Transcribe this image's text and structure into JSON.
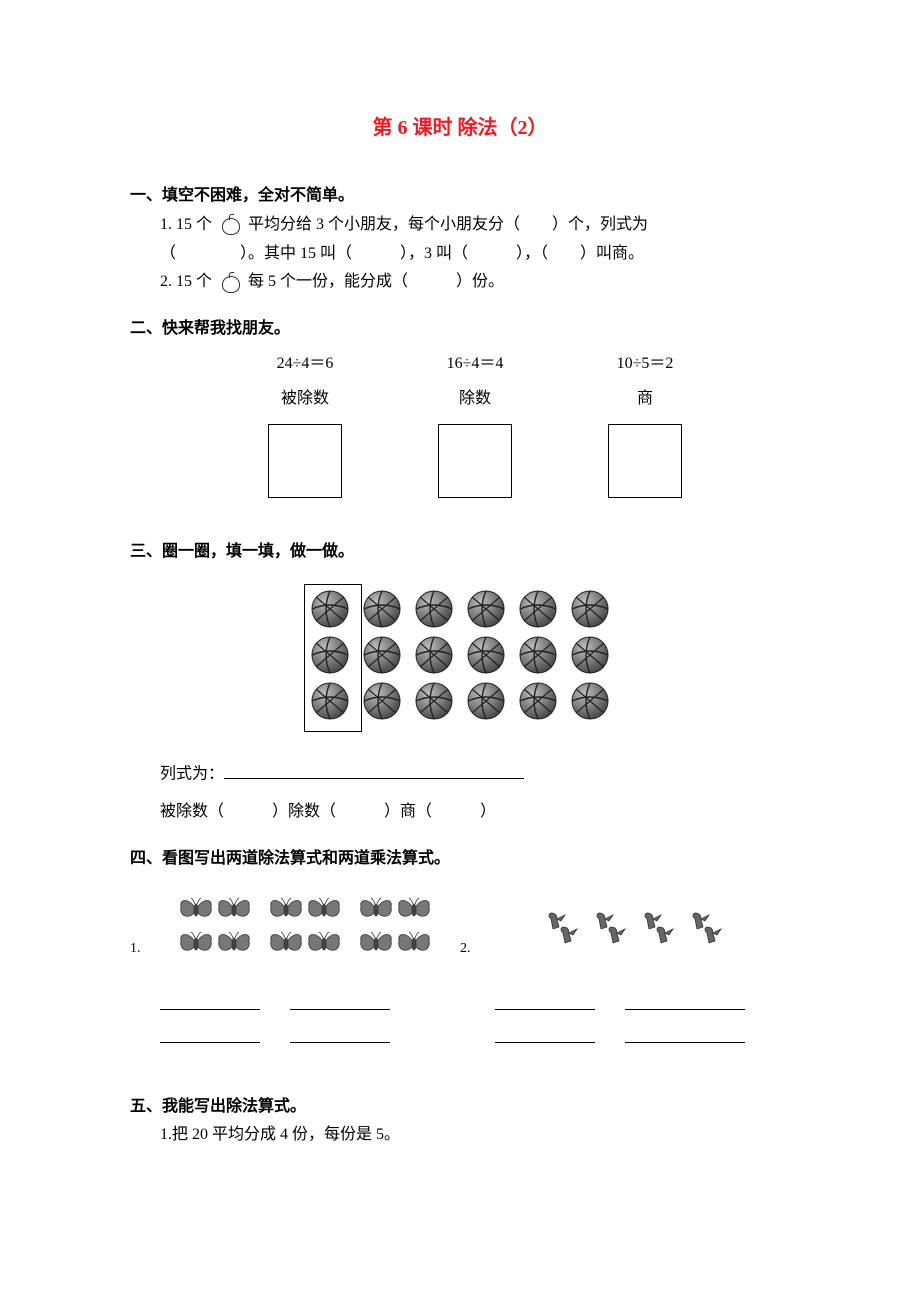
{
  "title": "第 6 课时 除法（2）",
  "s1": {
    "head": "一、填空不困难，全对不简单。",
    "q1a": "1. 15 个",
    "q1b": "平均分给 3 个小朋友，每个小朋友分（　　）个，列式为",
    "q1c": "（　　　　）。其中 15 叫（　　　），3 叫（　　　），（　　）叫商。",
    "q2a": "2. 15 个",
    "q2b": "每 5 个一份，能分成（　　　）份。"
  },
  "s2": {
    "head": "二、快来帮我找朋友。",
    "eq": [
      "24÷4＝6",
      "16÷4＝4",
      "10÷5＝2"
    ],
    "lbl": [
      "被除数",
      "除数",
      "商"
    ]
  },
  "s3": {
    "head": "三、圈一圈，填一填，做一做。",
    "balls": {
      "rows": 3,
      "cols": 6
    },
    "line1": "列式为：",
    "line2": "被除数（　　　）除数（　　　）商（　　　）"
  },
  "s4": {
    "head": "四、看图写出两道除法算式和两道乘法算式。",
    "n1": "1.",
    "n2": "2."
  },
  "s5": {
    "head": "五、我能写出除法算式。",
    "q1": "1.把 20 平均分成 4 份，每份是 5。"
  },
  "colors": {
    "title": "#ed1c24",
    "text": "#000000",
    "bg": "#ffffff"
  }
}
